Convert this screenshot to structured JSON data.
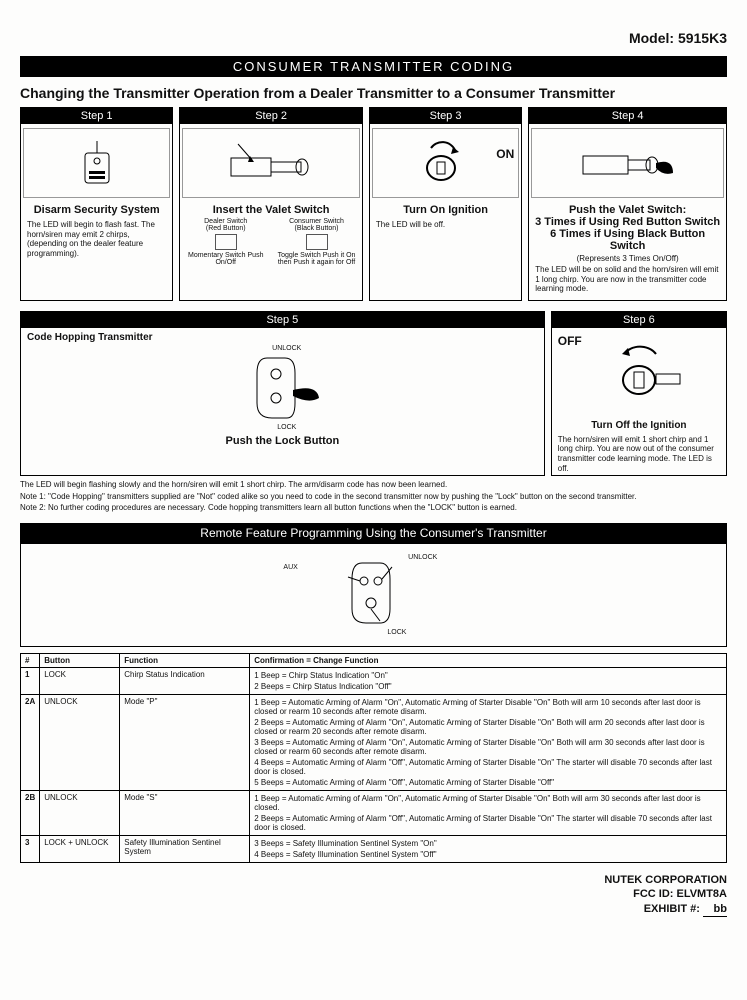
{
  "model_label": "Model: 5915K3",
  "title_bar": "CONSUMER TRANSMITTER CODING",
  "main_heading": "Changing the Transmitter Operation from a Dealer Transmitter to a Consumer Transmitter",
  "steps": [
    {
      "header": "Step 1",
      "title": "Disarm Security System",
      "desc": "The LED will begin to flash fast. The horn/siren may emit 2 chirps, (depending on the dealer feature programming)."
    },
    {
      "header": "Step 2",
      "title": "Insert the Valet Switch",
      "desc": ""
    },
    {
      "header": "Step 3",
      "title": "Turn On Ignition",
      "desc": "The LED will be off."
    },
    {
      "header": "Step 4",
      "title": "Push the Valet Switch:\n3 Times if Using Red Button Switch\n6 Times if Using Black Button Switch",
      "subtitle": "(Represents 3 Times On/Off)",
      "desc": "The LED will be on solid and the horn/siren will emit 1 long chirp. You are now in the transmitter code learning mode."
    }
  ],
  "switches": {
    "dealer_top": "Dealer Switch",
    "dealer_sub": "(Red Button)",
    "consumer_top": "Consumer Switch",
    "consumer_sub": "(Black Button)",
    "momentary": "Momentary Switch Push On/Off",
    "toggle": "Toggle Switch Push it On then Push it again for Off"
  },
  "step5": {
    "header": "Step 5",
    "sub": "Code Hopping Transmitter",
    "unlock": "UNLOCK",
    "lock": "LOCK",
    "title": "Push the Lock Button",
    "desc": "The LED will begin flashing slowly and the horn/siren will emit 1 short chirp. The arm/disarm code has now been learned.",
    "note1": "Note 1: \"Code Hopping\" transmitters supplied are \"Not\" coded alike so you need to code in the second transmitter now by pushing the \"Lock\" button on the second transmitter.",
    "note2": "Note 2: No further coding procedures are necessary. Code hopping transmitters learn all button functions when the \"LOCK\" button is earned."
  },
  "step6": {
    "header": "Step 6",
    "off": "OFF",
    "title": "Turn Off the Ignition",
    "desc": "The horn/siren will emit 1 short chirp and 1 long chirp. You are now out of the consumer transmitter code learning mode. The LED is off."
  },
  "remote_bar": "Remote Feature Programming Using the Consumer's Transmitter",
  "remote_labels": {
    "aux": "AUX",
    "unlock": "UNLOCK",
    "lock": "LOCK"
  },
  "table": {
    "header_num": "#",
    "header_button": "Button",
    "header_function": "Function",
    "header_conf": "Confirmation = Change Function",
    "rows": [
      {
        "num": "1",
        "button": "LOCK",
        "func": "Chirp Status Indication",
        "conf": [
          "1 Beep = Chirp Status Indication \"On\"",
          "2 Beeps = Chirp Status Indication \"Off\""
        ]
      },
      {
        "num": "2A",
        "button": "UNLOCK",
        "func": "Mode \"P\"",
        "conf": [
          "1 Beep = Automatic Arming of Alarm \"On\", Automatic Arming of Starter Disable \"On\"  Both will arm 10 seconds after last door is closed or rearm 10 seconds after remote disarm.",
          "2 Beeps = Automatic Arming of Alarm \"On\", Automatic Arming of Starter Disable \"On\"  Both will arm 20 seconds after last door is closed or rearm 20 seconds after remote disarm.",
          "3 Beeps = Automatic Arming of Alarm \"On\", Automatic Arming of Starter Disable \"On\"  Both will arm 30 seconds after last door is closed or rearm 60 seconds after remote disarm.",
          "4 Beeps = Automatic Arming of Alarm \"Off\", Automatic Arming of Starter Disable \"On\"  The starter will disable 70 seconds after last door is closed.",
          "5 Beeps = Automatic Arming of Alarm \"Off\", Automatic Arming of Starter Disable \"Off\""
        ]
      },
      {
        "num": "2B",
        "button": "UNLOCK",
        "func": "Mode \"S\"",
        "conf": [
          "1 Beep = Automatic Arming of Alarm \"On\", Automatic Arming of Starter Disable \"On\"  Both will arm 30 seconds after last door is closed.",
          "2 Beeps = Automatic Arming of Alarm \"Off\", Automatic Arming of Starter Disable \"On\"  The starter will disable 70 seconds after last door is closed."
        ]
      },
      {
        "num": "3",
        "button": "LOCK + UNLOCK",
        "func": "Safety Illumination Sentinel System",
        "conf": [
          "3 Beeps = Safety Illumination Sentinel System \"On\"",
          "4 Beeps = Safety Illumination Sentinel System \"Off\""
        ]
      }
    ]
  },
  "footer": {
    "company": "NUTEK CORPORATION",
    "fcc": "FCC ID: ELVMT8A",
    "exhibit_label": "EXHIBIT #:",
    "exhibit_val": "bb"
  }
}
